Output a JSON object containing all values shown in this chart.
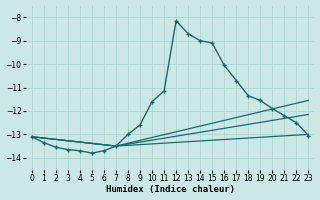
{
  "xlabel": "Humidex (Indice chaleur)",
  "background_color": "#cce8e6",
  "grid_color": "#aad4d0",
  "line_color": "#1a6b6b",
  "xlim": [
    -0.5,
    23.5
  ],
  "ylim": [
    -14.5,
    -7.5
  ],
  "yticks": [
    -14,
    -13,
    -12,
    -11,
    -10,
    -9,
    -8
  ],
  "xticks": [
    0,
    1,
    2,
    3,
    4,
    5,
    6,
    7,
    8,
    9,
    10,
    11,
    12,
    13,
    14,
    15,
    16,
    17,
    18,
    19,
    20,
    21,
    22,
    23
  ],
  "main_x": [
    0,
    1,
    2,
    3,
    4,
    5,
    6,
    7,
    8,
    9,
    10,
    11,
    12,
    13,
    14,
    15,
    16,
    17,
    18,
    19,
    20,
    21,
    22,
    23
  ],
  "main_y": [
    -13.1,
    -13.35,
    -13.55,
    -13.65,
    -13.7,
    -13.8,
    -13.7,
    -13.5,
    -13.0,
    -12.6,
    -11.6,
    -11.15,
    -8.15,
    -8.7,
    -9.0,
    -9.1,
    -10.05,
    -10.7,
    -11.35,
    -11.55,
    -11.9,
    -12.2,
    -12.5,
    -13.05
  ],
  "line1_x": [
    0,
    7,
    23
  ],
  "line1_y": [
    -13.1,
    -13.5,
    -13.0
  ],
  "line2_x": [
    0,
    7,
    23
  ],
  "line2_y": [
    -13.1,
    -13.5,
    -12.15
  ],
  "line3_x": [
    0,
    7,
    23
  ],
  "line3_y": [
    -13.1,
    -13.5,
    -11.55
  ]
}
